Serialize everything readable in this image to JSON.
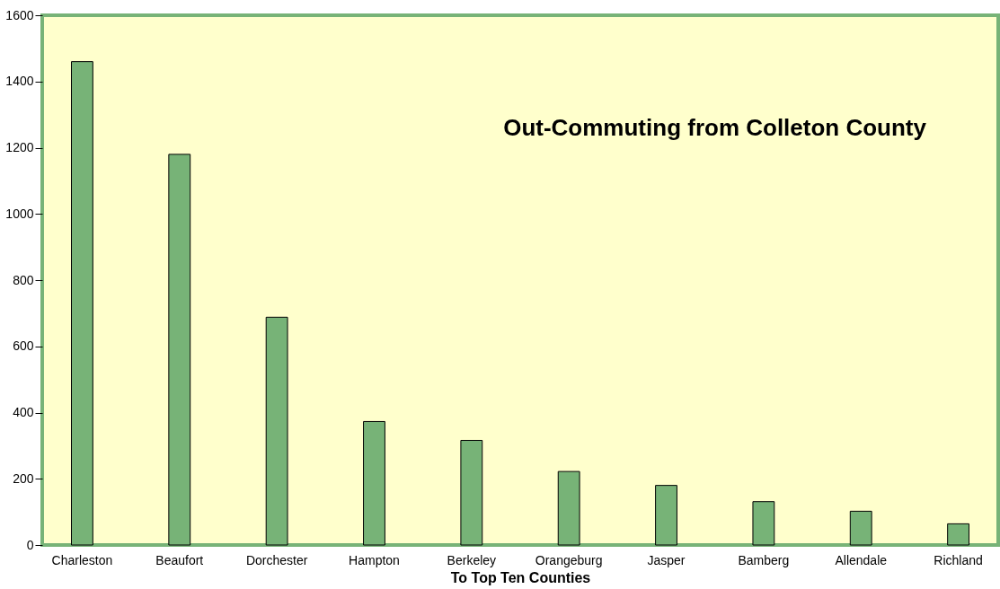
{
  "chart_data": {
    "type": "bar",
    "title": "Out-Commuting from Colleton County",
    "xlabel": "To Top Ten Counties",
    "categories": [
      "Charleston",
      "Beaufort",
      "Dorchester",
      "Hampton",
      "Berkeley",
      "Orangeburg",
      "Jasper",
      "Bamberg",
      "Allendale",
      "Richland"
    ],
    "values": [
      1460,
      1180,
      688,
      373,
      316,
      222,
      180,
      131,
      102,
      64
    ],
    "color": "#77b377",
    "ylim": [
      0,
      1600
    ],
    "yticks": [
      0,
      200,
      400,
      600,
      800,
      1000,
      1200,
      1400,
      1600
    ],
    "grid": false
  }
}
